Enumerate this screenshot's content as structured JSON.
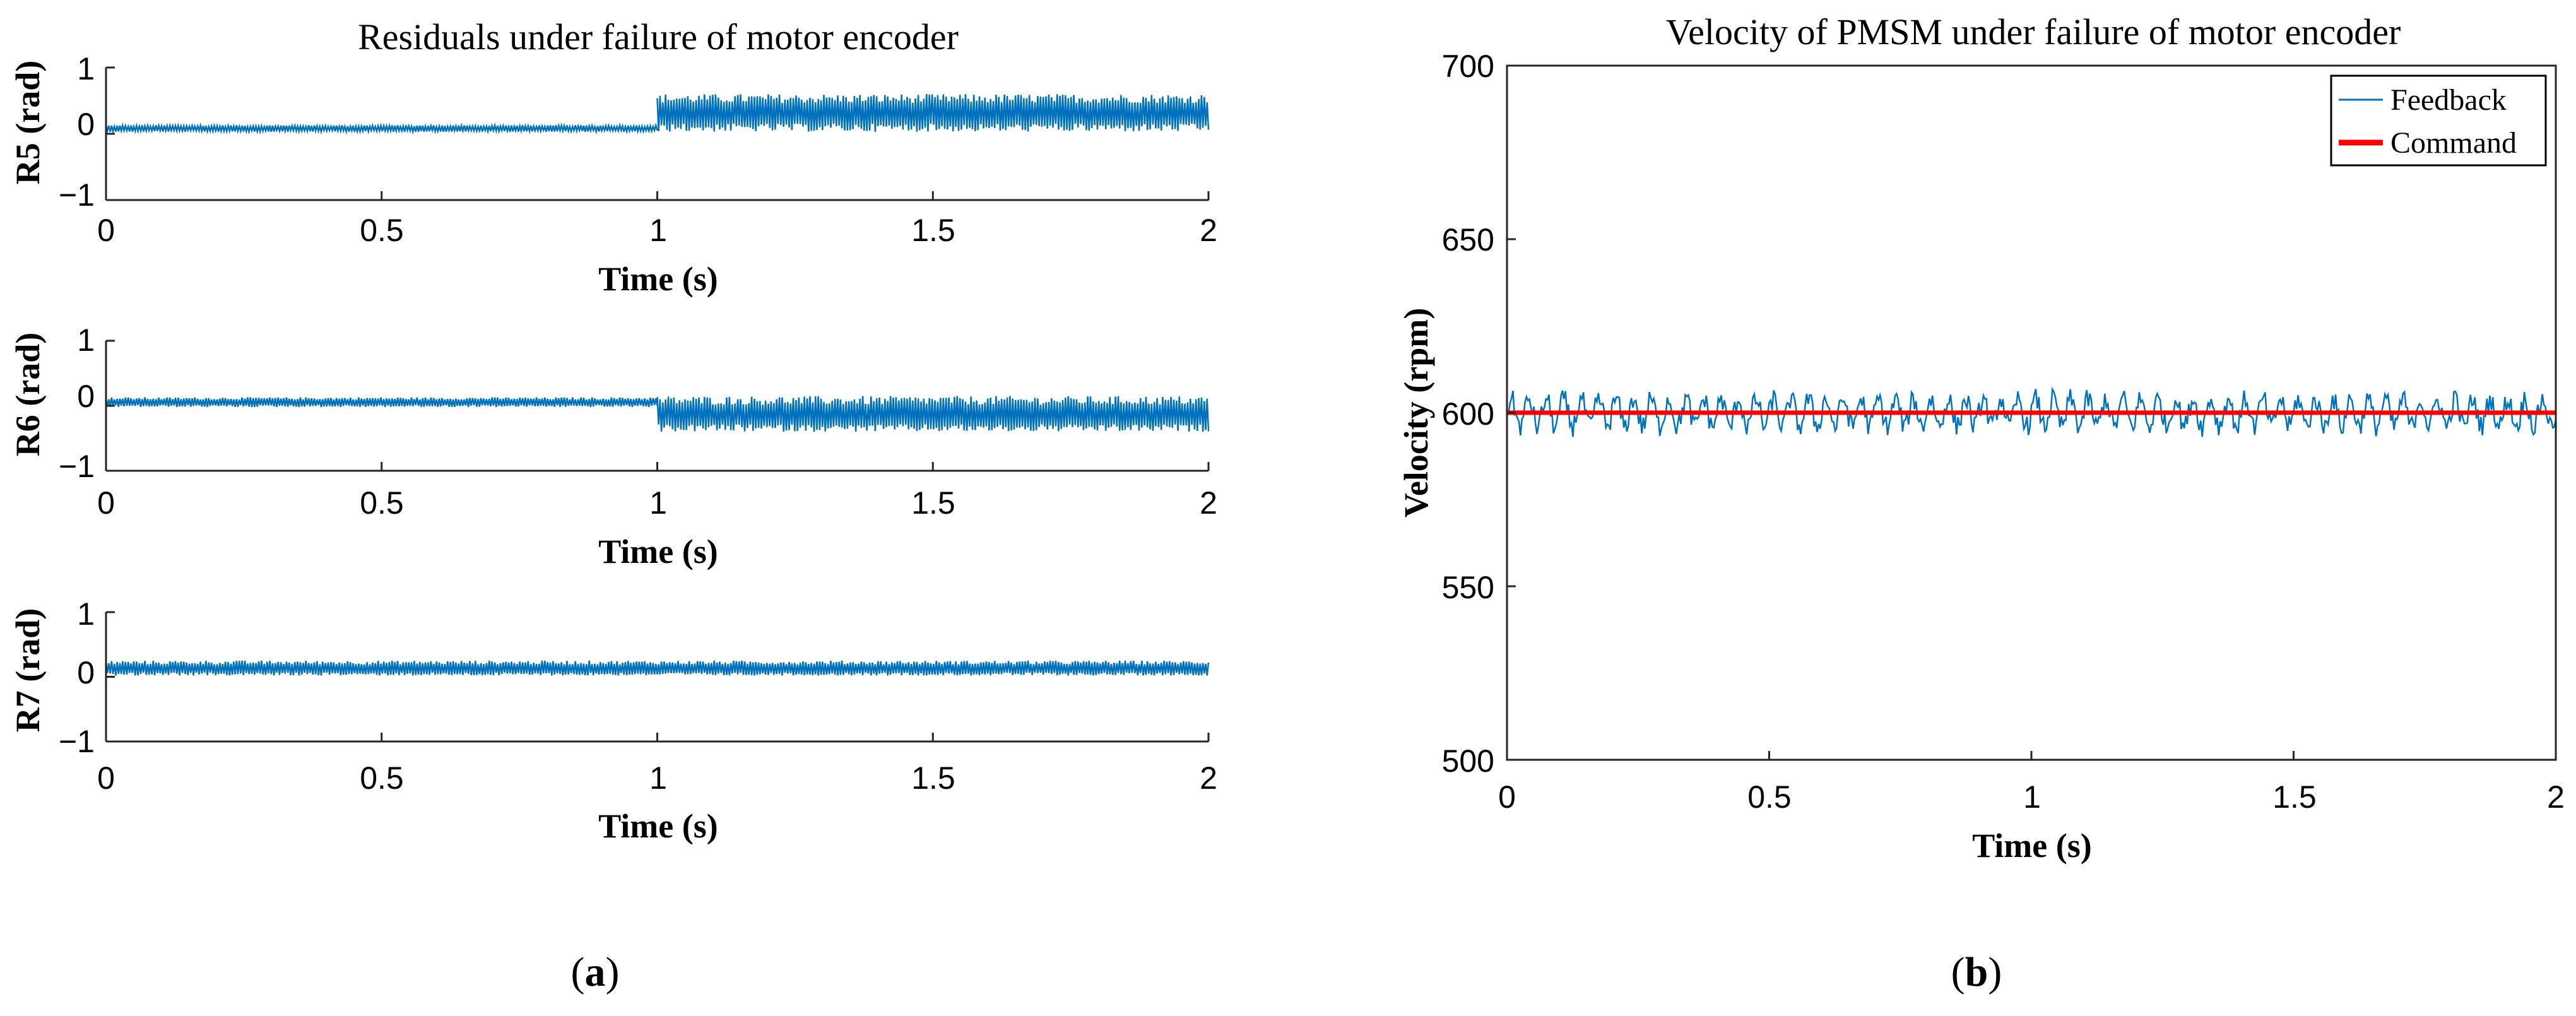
{
  "chart_data": [
    {
      "id": "r5",
      "type": "line",
      "title": "Residuals under failure of motor encoder",
      "xlabel": "Time (s)",
      "ylabel": "R5 (rad)",
      "xlim": [
        0,
        2
      ],
      "ylim": [
        -1,
        1
      ],
      "xticks": [
        "0",
        "0.5",
        "1",
        "1.5",
        "2"
      ],
      "yticks": [
        "1",
        "0",
        "−1"
      ],
      "series": [
        {
          "name": "R5",
          "color": "#0072BD",
          "segments": [
            {
              "x": [
                0,
                1
              ],
              "center": 0.08,
              "band": [
                0.03,
                0.13
              ]
            },
            {
              "x": [
                1,
                2
              ],
              "center": 0.3,
              "band": [
                0.03,
                0.6
              ]
            }
          ]
        }
      ]
    },
    {
      "id": "r6",
      "type": "line",
      "title": "",
      "xlabel": "Time (s)",
      "ylabel": "R6 (rad)",
      "xlim": [
        0,
        2
      ],
      "ylim": [
        -1,
        1
      ],
      "xticks": [
        "0",
        "0.5",
        "1",
        "1.5",
        "2"
      ],
      "yticks": [
        "1",
        "0",
        "−1"
      ],
      "series": [
        {
          "name": "R6",
          "color": "#0072BD",
          "segments": [
            {
              "x": [
                0,
                1
              ],
              "center": 0.05,
              "band": [
                -0.02,
                0.13
              ]
            },
            {
              "x": [
                1,
                2
              ],
              "center": -0.15,
              "band": [
                -0.4,
                0.15
              ]
            }
          ]
        }
      ]
    },
    {
      "id": "r7",
      "type": "line",
      "title": "",
      "xlabel": "Time (s)",
      "ylabel": "R7 (rad)",
      "xlim": [
        0,
        2
      ],
      "ylim": [
        -1,
        1
      ],
      "xticks": [
        "0",
        "0.5",
        "1",
        "1.5",
        "2"
      ],
      "yticks": [
        "1",
        "0",
        "−1"
      ],
      "series": [
        {
          "name": "R7",
          "color": "#0072BD",
          "segments": [
            {
              "x": [
                0,
                2
              ],
              "center": 0.12,
              "band": [
                0.02,
                0.25
              ]
            }
          ]
        }
      ]
    },
    {
      "id": "velocity",
      "type": "line",
      "title": "Velocity of PMSM under failure of motor encoder",
      "xlabel": "Time (s)",
      "ylabel": "Velocity (rpm)",
      "xlim": [
        0,
        2
      ],
      "ylim": [
        500,
        700
      ],
      "xticks": [
        "0",
        "0.5",
        "1",
        "1.5",
        "2"
      ],
      "yticks": [
        "700",
        "650",
        "600",
        "550",
        "500"
      ],
      "legend": {
        "position": "top-right",
        "entries": [
          "Feedback",
          "Command"
        ]
      },
      "series": [
        {
          "name": "Feedback",
          "color": "#0072BD",
          "x": [
            0,
            2
          ],
          "center": 600,
          "band": [
            590,
            612
          ]
        },
        {
          "name": "Command",
          "color": "#FF0000",
          "x": [
            0,
            2
          ],
          "values": [
            600,
            600
          ]
        }
      ]
    }
  ],
  "panel_labels": {
    "a": {
      "open": "(",
      "letter": "a",
      "close": ")"
    },
    "b": {
      "open": "(",
      "letter": "b",
      "close": ")"
    }
  }
}
